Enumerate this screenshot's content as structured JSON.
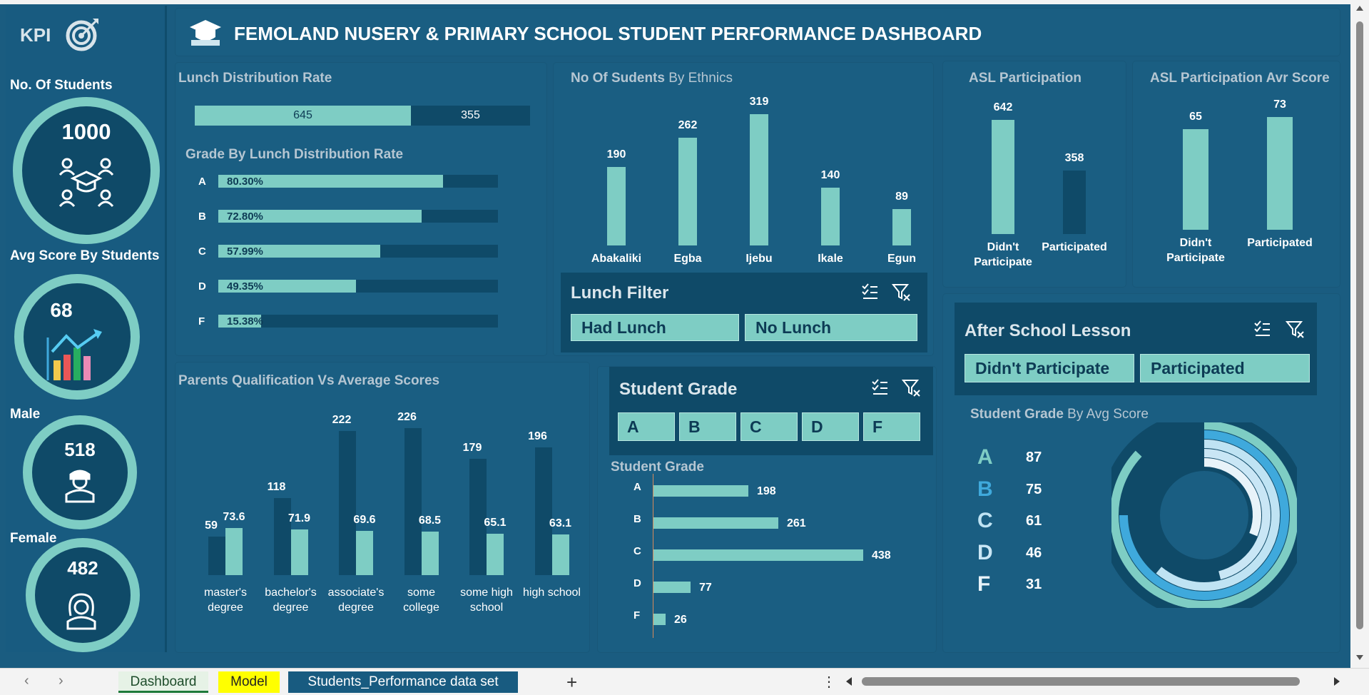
{
  "colors": {
    "accent": "#7ecdc4",
    "dark": "#0f4a68",
    "panel": "#1a5e82"
  },
  "header": {
    "title": "FEMOLAND NUSERY & PRIMARY SCHOOL STUDENT PERFORMANCE DASHBOARD",
    "logo_text": "KPI"
  },
  "kpis": {
    "students": {
      "label": "No. Of Students",
      "value": "1000"
    },
    "avg_score": {
      "label": "Avg Score By Students",
      "value": "68"
    },
    "male": {
      "label": "Male",
      "value": "518"
    },
    "female": {
      "label": "Female",
      "value": "482"
    }
  },
  "lunch": {
    "title": "Lunch Distribution Rate",
    "had": "645",
    "none": "355",
    "had_count": 645,
    "none_count": 355
  },
  "grade_lunch": {
    "title": "Grade By Lunch Distribution Rate",
    "rows": [
      {
        "grade": "A",
        "pct": "80.30%",
        "value": 80.3
      },
      {
        "grade": "B",
        "pct": "72.80%",
        "value": 72.8
      },
      {
        "grade": "C",
        "pct": "57.99%",
        "value": 57.99
      },
      {
        "grade": "D",
        "pct": "49.35%",
        "value": 49.35
      },
      {
        "grade": "F",
        "pct": "15.38%",
        "value": 15.38
      }
    ]
  },
  "ethnics": {
    "title_bold": "No Of Sudents",
    "title_rest": " By Ethnics",
    "chart_data": {
      "type": "bar",
      "categories": [
        "Abakaliki",
        "Egba",
        "Ijebu",
        "Ikale",
        "Egun"
      ],
      "values": [
        190,
        262,
        319,
        140,
        89
      ]
    }
  },
  "asl": {
    "title": "ASL Participation",
    "chart_data": {
      "type": "bar",
      "categories": [
        "Didn't Participate",
        "Participated"
      ],
      "values": [
        642,
        358
      ]
    }
  },
  "asl_avg": {
    "title": "ASL Participation Avr Score",
    "chart_data": {
      "type": "bar",
      "categories": [
        "Didn't Participate",
        "Participated"
      ],
      "values": [
        65,
        73
      ]
    }
  },
  "lunch_filter": {
    "title": "Lunch Filter",
    "options": [
      "Had  Lunch",
      "No Lunch"
    ]
  },
  "after_school": {
    "title": "After School Lesson",
    "options": [
      "Didn't Participate",
      "Participated"
    ]
  },
  "student_grade_slicer": {
    "title": "Student Grade",
    "options": [
      "A",
      "B",
      "C",
      "D",
      "F"
    ]
  },
  "parents": {
    "title": "Parents Qualification Vs Average Scores",
    "chart_data": {
      "type": "bar",
      "categories": [
        "master's degree",
        "bachelor's degree",
        "associate's degree",
        "some college",
        "some high school",
        "high school"
      ],
      "series": [
        {
          "values": [
            59,
            118,
            222,
            226,
            179,
            196
          ]
        },
        {
          "values": [
            73.6,
            71.9,
            69.6,
            68.5,
            65.1,
            63.1
          ]
        }
      ]
    },
    "cat_lines": [
      [
        "master's",
        "degree"
      ],
      [
        "bachelor's",
        "degree"
      ],
      [
        "associate's",
        "degree"
      ],
      [
        "some",
        "college"
      ],
      [
        "some high",
        "school"
      ],
      [
        "high school"
      ]
    ]
  },
  "student_grade": {
    "title": "Student  Grade",
    "chart_data": {
      "type": "bar",
      "categories": [
        "A",
        "B",
        "C",
        "D",
        "F"
      ],
      "values": [
        198,
        261,
        438,
        77,
        26
      ]
    }
  },
  "grade_avg": {
    "title_bold": "Student  Grade",
    "title_rest": " By Avg Score",
    "chart_data": {
      "type": "pie",
      "categories": [
        "A",
        "B",
        "C",
        "D",
        "F"
      ],
      "values": [
        87,
        75,
        61,
        46,
        31
      ]
    },
    "letter_colors": [
      "#7ecdc4",
      "#3fa9dc",
      "#bfe3f3",
      "#c9e6f5",
      "#e8f3f9"
    ]
  },
  "sheet_tabs": [
    "Dashboard",
    "Model",
    "Students_Performance data set"
  ],
  "footer": {
    "add": "+",
    "more": "⋮"
  }
}
